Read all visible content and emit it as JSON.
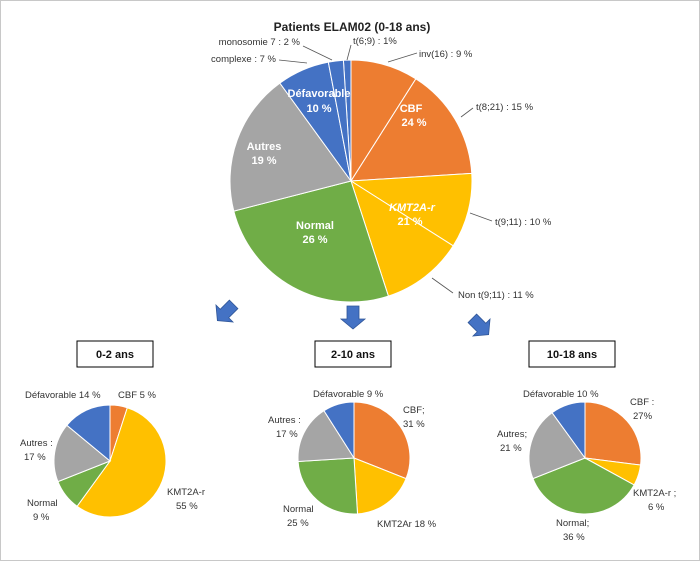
{
  "title": "Patients ELAM02 (0-18 ans)",
  "colors": {
    "orange": "#ED7D31",
    "yellow": "#FFC000",
    "green": "#70AD47",
    "gray": "#A5A5A5",
    "blue": "#4472C4",
    "arrow": "#4472C4"
  },
  "chart_data": [
    {
      "type": "pie",
      "title": "Patients ELAM02 (0-18 ans)",
      "slices": [
        {
          "label": "t(6;9) : 1%",
          "value": 1,
          "color": "#4472C4"
        },
        {
          "label": "inv(16) : 9 %",
          "value": 9,
          "color": "#ED7D31"
        },
        {
          "label": "t(8;21) : 15 %",
          "value": 15,
          "color": "#ED7D31"
        },
        {
          "label": "t(9;11) : 10 %",
          "value": 10,
          "color": "#FFC000"
        },
        {
          "label": "Non t(9;11) : 11 %",
          "value": 11,
          "color": "#FFC000"
        },
        {
          "label": "Normal 26 %",
          "value": 26,
          "color": "#70AD47"
        },
        {
          "label": "Autres 19 %",
          "value": 19,
          "color": "#A5A5A5"
        },
        {
          "label": "complexe : 7 %",
          "value": 7,
          "color": "#4472C4"
        },
        {
          "label": "monosomie 7 : 2 %",
          "value": 2,
          "color": "#4472C4"
        }
      ],
      "group_labels": [
        {
          "line1": "CBF",
          "line2": "24 %"
        },
        {
          "line1": "KMT2A-r",
          "line2": "21 %"
        },
        {
          "line1": "Normal",
          "line2": "26 %"
        },
        {
          "line1": "Autres",
          "line2": "19 %"
        },
        {
          "line1": "Défavorable",
          "line2": "10 %"
        }
      ]
    },
    {
      "type": "pie",
      "title": "0-2 ans",
      "slices": [
        {
          "label": "CBF 5 %",
          "value": 5,
          "color": "#ED7D31"
        },
        {
          "label": "KMT2A-r 55 %",
          "value": 55,
          "color": "#FFC000"
        },
        {
          "label": "Normal 9 %",
          "value": 9,
          "color": "#70AD47"
        },
        {
          "label": "Autres : 17 %",
          "value": 17,
          "color": "#A5A5A5"
        },
        {
          "label": "Défavorable 14 %",
          "value": 14,
          "color": "#4472C4"
        }
      ]
    },
    {
      "type": "pie",
      "title": "2-10 ans",
      "slices": [
        {
          "label": "CBF; 31 %",
          "value": 31,
          "color": "#ED7D31"
        },
        {
          "label": "KMT2Ar 18 %",
          "value": 18,
          "color": "#FFC000"
        },
        {
          "label": "Normal 25 %",
          "value": 25,
          "color": "#70AD47"
        },
        {
          "label": "Autres : 17 %",
          "value": 17,
          "color": "#A5A5A5"
        },
        {
          "label": "Défavorable 9 %",
          "value": 9,
          "color": "#4472C4"
        }
      ]
    },
    {
      "type": "pie",
      "title": "10-18 ans",
      "slices": [
        {
          "label": "CBF : 27%",
          "value": 27,
          "color": "#ED7D31"
        },
        {
          "label": "KMT2A-r ; 6 %",
          "value": 6,
          "color": "#FFC000"
        },
        {
          "label": "Normal; 36 %",
          "value": 36,
          "color": "#70AD47"
        },
        {
          "label": "Autres; 21 %",
          "value": 21,
          "color": "#A5A5A5"
        },
        {
          "label": "Défavorable 10 %",
          "value": 10,
          "color": "#4472C4"
        }
      ]
    }
  ],
  "main_labels": {
    "t69": "t(6;9) : 1%",
    "inv16": "inv(16) : 9 %",
    "t821": "t(8;21) : 15 %",
    "t911": "t(9;11) : 10 %",
    "non_t911": "Non t(9;11) : 11 %",
    "monosomie": "monosomie 7 : 2 %",
    "complexe": "complexe : 7 %",
    "cbf": "CBF",
    "cbf_pct": "24 %",
    "kmt": "KMT2A-r",
    "kmt_pct": "21 %",
    "normal": "Normal",
    "normal_pct": "26 %",
    "autres": "Autres",
    "autres_pct": "19 %",
    "defav": "Défavorable",
    "defav_pct": "10 %"
  },
  "age_groups": {
    "g1": {
      "title": "0-2 ans",
      "defav": "Défavorable 14 %",
      "cbf": "CBF 5 %",
      "autres1": "Autres :",
      "autres2": "17 %",
      "normal1": "Normal",
      "normal2": "9 %",
      "kmt1": "KMT2A-r",
      "kmt2": "55 %"
    },
    "g2": {
      "title": "2-10 ans",
      "defav": "Défavorable 9 %",
      "cbf1": "CBF;",
      "cbf2": "31 %",
      "autres1": "Autres :",
      "autres2": "17 %",
      "normal1": "Normal",
      "normal2": "25 %",
      "kmt": "KMT2Ar 18 %"
    },
    "g3": {
      "title": "10-18 ans",
      "defav": "Défavorable 10 %",
      "cbf1": "CBF :",
      "cbf2": "27%",
      "autres1": "Autres;",
      "autres2": "21 %",
      "normal1": "Normal;",
      "normal2": "36 %",
      "kmt1": "KMT2A-r ;",
      "kmt2": "6 %"
    }
  }
}
